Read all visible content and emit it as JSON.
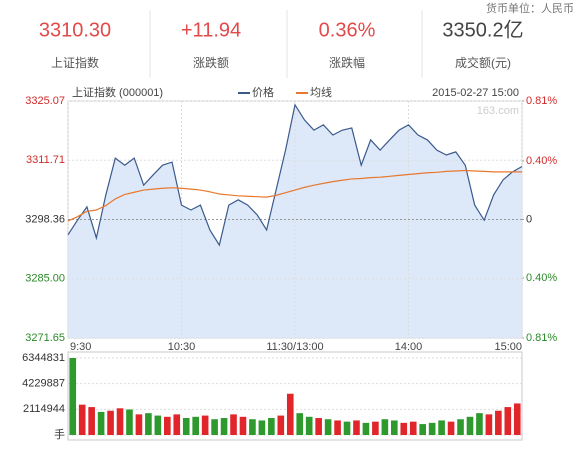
{
  "header": {
    "currency_note": "货币单位：人民币",
    "stats": [
      {
        "value": "3310.30",
        "label": "上证指数",
        "color": "#e24a4a"
      },
      {
        "value": "+11.94",
        "label": "涨跌额",
        "color": "#e24a4a"
      },
      {
        "value": "0.36%",
        "label": "涨跌幅",
        "color": "#e24a4a"
      },
      {
        "value": "3350.2亿",
        "label": "成交额(元)",
        "color": "#444444"
      }
    ]
  },
  "chart_data": [
    {
      "type": "line",
      "title": "上证指数 (000001)",
      "timestamp": "2015-02-27 15:00",
      "watermark": "163.com",
      "fill": "#dde8f9",
      "grid": true,
      "x": [
        0,
        5,
        10,
        15,
        20,
        25,
        30,
        35,
        40,
        45,
        50,
        55,
        60,
        65,
        70,
        75,
        80,
        85,
        90,
        95,
        100,
        105,
        110,
        115,
        120,
        125,
        130,
        135,
        140,
        145,
        150,
        155,
        160,
        165,
        170,
        175,
        180,
        185,
        190,
        195,
        200,
        205,
        210,
        215,
        220,
        225,
        230,
        235,
        240
      ],
      "xlim": [
        0,
        240
      ],
      "xticks": [
        {
          "value": 0,
          "label": "9:30"
        },
        {
          "value": 60,
          "label": "10:30"
        },
        {
          "value": 120,
          "label": "11:30/13:00"
        },
        {
          "value": 180,
          "label": "14:00"
        },
        {
          "value": 240,
          "label": "15:00"
        }
      ],
      "ylim": [
        3271.65,
        3325.07
      ],
      "yticks": [
        3325.07,
        3311.71,
        3298.36,
        {
          "value": 3285,
          "label": "3285.00"
        },
        3271.65
      ],
      "y2lim": [
        -0.81,
        0.81
      ],
      "y2ticks": [
        {
          "value": 0.81,
          "label": "0.81%"
        },
        {
          "value": 0.4,
          "label": "0.40%"
        },
        0,
        {
          "value": -0.4,
          "label": "0.40%"
        },
        {
          "value": -0.81,
          "label": "0.81%"
        }
      ],
      "series": [
        {
          "name": "价格",
          "color": "#3a5a8c",
          "values": [
            3294.9,
            3298.2,
            3301.2,
            3294.2,
            3303.9,
            3312.2,
            3310.6,
            3312.2,
            3306.1,
            3308.4,
            3310.6,
            3311.3,
            3301.6,
            3300.5,
            3301.6,
            3296.0,
            3292.6,
            3301.6,
            3302.8,
            3301.6,
            3299.4,
            3296.0,
            3305.0,
            3314.0,
            3324.2,
            3320.8,
            3318.5,
            3319.7,
            3317.4,
            3318.5,
            3319.0,
            3310.6,
            3316.3,
            3314.0,
            3316.3,
            3318.5,
            3319.7,
            3317.4,
            3316.3,
            3314.0,
            3312.9,
            3313.6,
            3310.6,
            3301.6,
            3298.2,
            3303.9,
            3307.3,
            3309.1,
            3310.3
          ]
        },
        {
          "name": "均线",
          "color": "#e8782e",
          "values": [
            3298.0,
            3299.0,
            3300.2,
            3300.5,
            3301.5,
            3303.0,
            3304.0,
            3304.5,
            3305.0,
            3305.2,
            3305.4,
            3305.5,
            3305.4,
            3305.2,
            3305.0,
            3304.6,
            3304.1,
            3303.9,
            3303.7,
            3303.6,
            3303.5,
            3303.4,
            3303.8,
            3304.4,
            3305.0,
            3305.6,
            3306.1,
            3306.5,
            3306.9,
            3307.2,
            3307.5,
            3307.6,
            3307.8,
            3307.9,
            3308.1,
            3308.3,
            3308.5,
            3308.7,
            3308.9,
            3309.0,
            3309.2,
            3309.3,
            3309.4,
            3309.3,
            3309.2,
            3309.1,
            3309.1,
            3309.1,
            3309.1
          ]
        }
      ]
    },
    {
      "type": "bar",
      "grid": true,
      "x": [
        2.5,
        7.5,
        12.5,
        17.5,
        22.5,
        27.5,
        32.5,
        37.5,
        42.5,
        47.5,
        52.5,
        57.5,
        62.5,
        67.5,
        72.5,
        77.5,
        82.5,
        87.5,
        92.5,
        97.5,
        102.5,
        107.5,
        112.5,
        117.5,
        122.5,
        127.5,
        132.5,
        137.5,
        142.5,
        147.5,
        152.5,
        157.5,
        162.5,
        167.5,
        172.5,
        177.5,
        182.5,
        187.5,
        192.5,
        197.5,
        202.5,
        207.5,
        212.5,
        217.5,
        222.5,
        227.5,
        232.5,
        237.5
      ],
      "xlim": [
        0,
        240
      ],
      "ylim": [
        0,
        6344831
      ],
      "yticks": [
        6344831,
        4229887,
        2114944,
        {
          "value": 0,
          "label": "手"
        }
      ],
      "values": [
        6344831,
        2500000,
        2300000,
        1900000,
        2000000,
        2200000,
        2100000,
        1700000,
        1800000,
        1600000,
        1500000,
        1700000,
        1400000,
        1500000,
        1600000,
        1300000,
        1400000,
        1700000,
        1500000,
        1300000,
        1200000,
        1400000,
        1600000,
        3400000,
        1800000,
        1500000,
        1400000,
        1300000,
        1200000,
        1100000,
        1200000,
        1000000,
        1100000,
        1300000,
        1200000,
        1000000,
        1100000,
        900000,
        1000000,
        1200000,
        1100000,
        1300000,
        1500000,
        1800000,
        1700000,
        2000000,
        2300000,
        2600000
      ],
      "colors": [
        "#2e9a2e",
        "#e0262b",
        "#e0262b",
        "#2e9a2e",
        "#e0262b",
        "#e0262b",
        "#2e9a2e",
        "#e0262b",
        "#2e9a2e",
        "#2e9a2e",
        "#e0262b",
        "#e0262b",
        "#2e9a2e",
        "#2e9a2e",
        "#e0262b",
        "#2e9a2e",
        "#2e9a2e",
        "#e0262b",
        "#e0262b",
        "#2e9a2e",
        "#2e9a2e",
        "#2e9a2e",
        "#e0262b",
        "#e0262b",
        "#2e9a2e",
        "#2e9a2e",
        "#e0262b",
        "#2e9a2e",
        "#e0262b",
        "#2e9a2e",
        "#e0262b",
        "#2e9a2e",
        "#e0262b",
        "#2e9a2e",
        "#2e9a2e",
        "#e0262b",
        "#e0262b",
        "#2e9a2e",
        "#2e9a2e",
        "#2e9a2e",
        "#e0262b",
        "#2e9a2e",
        "#2e9a2e",
        "#2e9a2e",
        "#e0262b",
        "#e0262b",
        "#e0262b",
        "#e0262b"
      ]
    }
  ]
}
